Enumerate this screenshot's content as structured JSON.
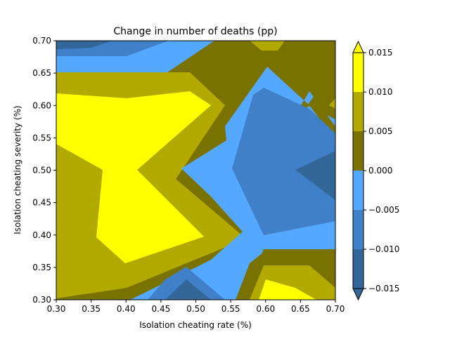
{
  "chart_data": {
    "type": "contour",
    "title": "Change in number of deaths (pp)",
    "xlabel": "Isolation cheating rate (%)",
    "ylabel": "Isolation cheating severity (%)",
    "xlim": [
      0.3,
      0.7
    ],
    "ylim": [
      0.3,
      0.7
    ],
    "xticks": [
      "0.30",
      "0.35",
      "0.40",
      "0.45",
      "0.50",
      "0.55",
      "0.60",
      "0.65",
      "0.70"
    ],
    "yticks": [
      "0.30",
      "0.35",
      "0.40",
      "0.45",
      "0.50",
      "0.55",
      "0.60",
      "0.65",
      "0.70"
    ],
    "grid": false,
    "colorbar": {
      "levels": [
        -0.015,
        -0.01,
        -0.005,
        0.0,
        0.005,
        0.01,
        0.015
      ],
      "tick_labels": [
        "−0.015",
        "−0.010",
        "−0.005",
        "0.000",
        "0.005",
        "0.010",
        "0.015"
      ],
      "colors": [
        "#336699",
        "#4080c8",
        "#55a8ff",
        "#7a7200",
        "#b2aa00",
        "#ffff00"
      ],
      "extend": "both"
    },
    "band_colors": {
      "band_m15_m10": "#336699",
      "band_m10_m05": "#4080c8",
      "band_m05_0": "#55a8ff",
      "band_0_05": "#7a7200",
      "band_05_10": "#b2aa00",
      "band_10_15": "#ffff00"
    }
  }
}
